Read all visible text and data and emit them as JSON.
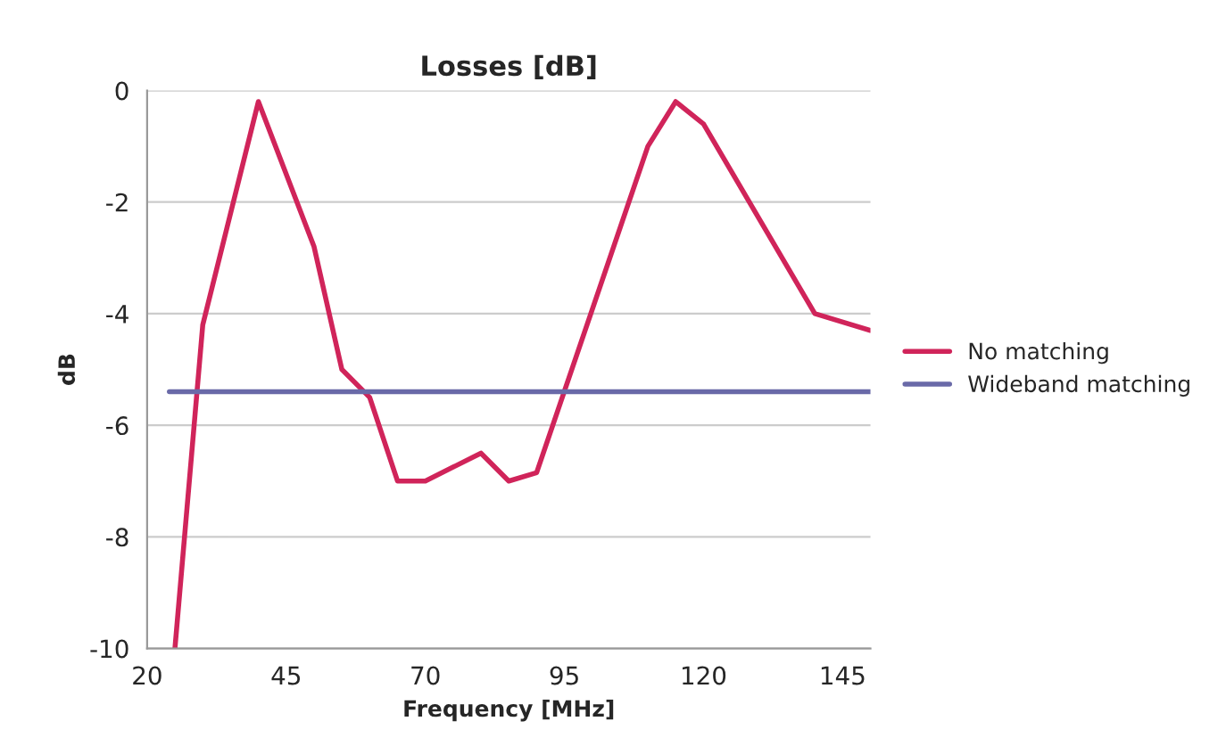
{
  "chart_data": {
    "type": "line",
    "title": "Losses [dB]",
    "xlabel": "Frequency [MHz]",
    "ylabel": "dB",
    "xlim": [
      20,
      150
    ],
    "xticks": [
      20,
      45,
      70,
      95,
      120,
      145
    ],
    "ylim": [
      -10,
      0
    ],
    "yticks": [
      -10,
      -8,
      -6,
      -4,
      -2,
      0
    ],
    "grid": "y",
    "legend": "right",
    "marker": "none",
    "line_style": "solid",
    "series": [
      {
        "name": "No matching",
        "color": "#d0245a",
        "x": [
          25,
          30,
          40,
          50,
          55,
          60,
          65,
          70,
          75,
          80,
          85,
          90,
          110,
          115,
          120,
          140,
          150
        ],
        "values": [
          -10,
          -4.2,
          -0.2,
          -2.8,
          -5.0,
          -5.5,
          -7.0,
          -7.0,
          -6.75,
          -6.5,
          -7.0,
          -6.85,
          -1.0,
          -0.2,
          -0.6,
          -4.0,
          -4.3
        ]
      },
      {
        "name": "Wideband matching",
        "color": "#6a6aa8",
        "x": [
          24,
          150
        ],
        "values": [
          -5.4,
          -5.4
        ]
      }
    ]
  }
}
